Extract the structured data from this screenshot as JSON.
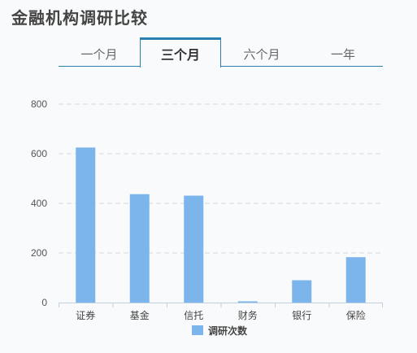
{
  "header": {
    "title": "金融机构调研比较"
  },
  "tabs": [
    {
      "label": "一个月",
      "active": false
    },
    {
      "label": "三个月",
      "active": true
    },
    {
      "label": "六个月",
      "active": false
    },
    {
      "label": "一年",
      "active": false
    }
  ],
  "colors": {
    "bar": "#7cb5ec",
    "accent": "#2a7fb0",
    "grid": "#d8d8d8",
    "axis": "#c0d0e0"
  },
  "chart_data": {
    "type": "bar",
    "categories": [
      "证券",
      "基金",
      "信托",
      "财务",
      "银行",
      "保险"
    ],
    "series": [
      {
        "name": "调研次数",
        "values": [
          625,
          437,
          431,
          5,
          90,
          183
        ]
      }
    ],
    "ylim": [
      0,
      800
    ],
    "yticks": [
      0,
      200,
      400,
      600,
      800
    ],
    "grid": true,
    "legend": "bottom-center"
  }
}
